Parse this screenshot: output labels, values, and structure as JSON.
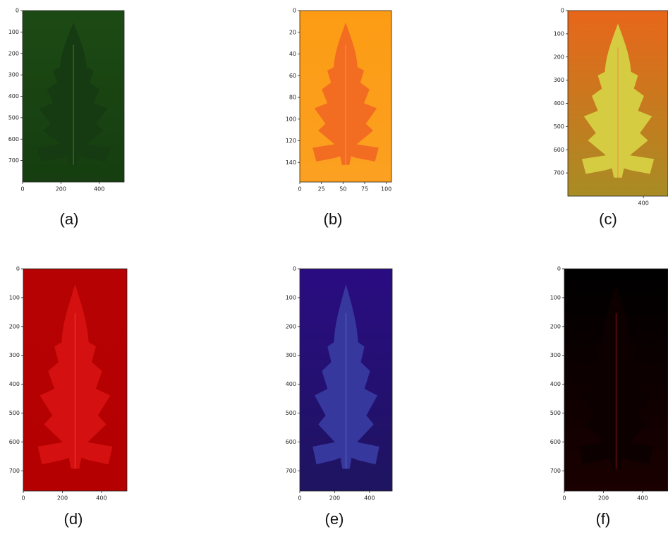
{
  "chart_data": [
    {
      "type": "image",
      "caption": "(a)",
      "y_inverted": true,
      "xlim": [
        0,
        530
      ],
      "ylim": [
        0,
        800
      ],
      "xticks": [
        0,
        200,
        400
      ],
      "yticks": [
        0,
        100,
        200,
        300,
        400,
        500,
        600,
        700
      ]
    },
    {
      "type": "image",
      "caption": "(b)",
      "y_inverted": true,
      "xlim": [
        0,
        106
      ],
      "ylim": [
        0,
        158
      ],
      "xticks": [
        0,
        25,
        50,
        75,
        100
      ],
      "yticks": [
        0,
        20,
        40,
        60,
        80,
        100,
        120,
        140
      ]
    },
    {
      "type": "image",
      "caption": "(c)",
      "y_inverted": true,
      "xlim": [
        0,
        530
      ],
      "ylim": [
        0,
        800
      ],
      "xticks": [
        400
      ],
      "yticks": [
        0,
        100,
        200,
        300,
        400,
        500,
        600,
        700
      ]
    },
    {
      "type": "image",
      "caption": "(d)",
      "y_inverted": true,
      "xlim": [
        0,
        530
      ],
      "ylim": [
        0,
        770
      ],
      "xticks": [
        0,
        200,
        400
      ],
      "yticks": [
        0,
        100,
        200,
        300,
        400,
        500,
        600,
        700
      ]
    },
    {
      "type": "image",
      "caption": "(e)",
      "y_inverted": true,
      "xlim": [
        0,
        530
      ],
      "ylim": [
        0,
        770
      ],
      "xticks": [
        0,
        200,
        400
      ],
      "yticks": [
        0,
        100,
        200,
        300,
        400,
        500,
        600,
        700
      ]
    },
    {
      "type": "image",
      "caption": "(f)",
      "y_inverted": true,
      "xlim": [
        0,
        530
      ],
      "ylim": [
        0,
        770
      ],
      "xticks": [
        0,
        200,
        400
      ],
      "yticks": [
        0,
        100,
        200,
        300,
        400,
        500,
        600,
        700
      ]
    }
  ]
}
